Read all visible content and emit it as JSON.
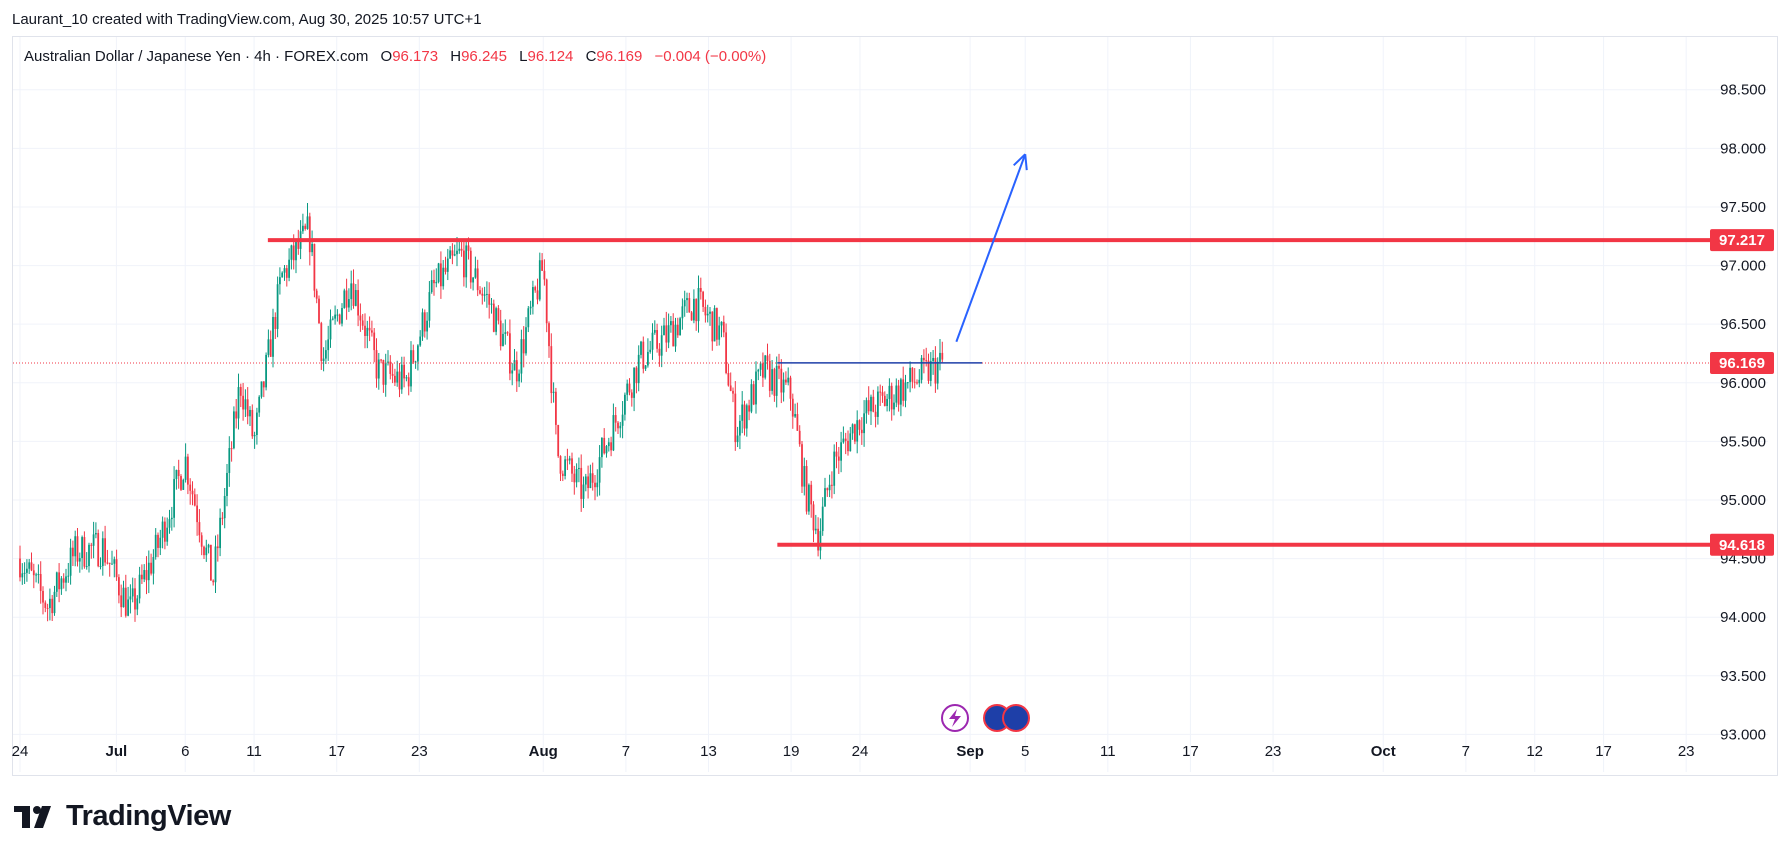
{
  "header": {
    "credit": "Laurant_10 created with TradingView.com, Aug 30, 2025 10:57 UTC+1"
  },
  "legend": {
    "symbol": "Australian Dollar / Japanese Yen · 4h · FOREX.com",
    "open_label": "O",
    "open": "96.173",
    "high_label": "H",
    "high": "96.245",
    "low_label": "L",
    "low": "96.124",
    "close_label": "C",
    "close": "96.169",
    "change": "−0.004 (−0.00%)"
  },
  "footer": {
    "logo_text": "TradingView"
  },
  "colors": {
    "up": "#089981",
    "down": "#f23645",
    "level": "#f23645",
    "arrow": "#2962ff",
    "neckline": "#1e3fa8",
    "grid": "#f0f3fa"
  },
  "chart_data": {
    "type": "candlestick",
    "interval": "4h",
    "ylim": [
      92.85,
      98.95
    ],
    "y_ticks": [
      "93.000",
      "93.500",
      "94.000",
      "94.500",
      "95.000",
      "95.500",
      "96.000",
      "96.500",
      "97.000",
      "97.500",
      "98.000",
      "98.500"
    ],
    "x_ticks": [
      {
        "label": "24",
        "bold": false
      },
      {
        "label": "Jul",
        "bold": true
      },
      {
        "label": "6",
        "bold": false
      },
      {
        "label": "11",
        "bold": false
      },
      {
        "label": "17",
        "bold": false
      },
      {
        "label": "23",
        "bold": false
      },
      {
        "label": "Aug",
        "bold": true
      },
      {
        "label": "7",
        "bold": false
      },
      {
        "label": "13",
        "bold": false
      },
      {
        "label": "19",
        "bold": false
      },
      {
        "label": "24",
        "bold": false
      },
      {
        "label": "Sep",
        "bold": true
      },
      {
        "label": "5",
        "bold": false
      },
      {
        "label": "11",
        "bold": false
      },
      {
        "label": "17",
        "bold": false
      },
      {
        "label": "23",
        "bold": false
      },
      {
        "label": "Oct",
        "bold": true
      },
      {
        "label": "7",
        "bold": false
      },
      {
        "label": "12",
        "bold": false
      },
      {
        "label": "17",
        "bold": false
      },
      {
        "label": "23",
        "bold": false
      }
    ],
    "price_path": [
      [
        "2025-06-24",
        94.5
      ],
      [
        "2025-06-26",
        94.1
      ],
      [
        "2025-06-28",
        94.55
      ],
      [
        "2025-06-30",
        94.6
      ],
      [
        "2025-07-02",
        94.05
      ],
      [
        "2025-07-04",
        94.6
      ],
      [
        "2025-07-06",
        95.35
      ],
      [
        "2025-07-08",
        94.3
      ],
      [
        "2025-07-10",
        96.0
      ],
      [
        "2025-07-11",
        95.5
      ],
      [
        "2025-07-13",
        96.9
      ],
      [
        "2025-07-15",
        97.3
      ],
      [
        "2025-07-16",
        96.2
      ],
      [
        "2025-07-18",
        96.9
      ],
      [
        "2025-07-20",
        96.1
      ],
      [
        "2025-07-22",
        96.0
      ],
      [
        "2025-07-24",
        96.8
      ],
      [
        "2025-07-26",
        97.1
      ],
      [
        "2025-07-28",
        96.7
      ],
      [
        "2025-07-30",
        96.1
      ],
      [
        "2025-08-01",
        97.0
      ],
      [
        "2025-08-02",
        95.4
      ],
      [
        "2025-08-04",
        95.05
      ],
      [
        "2025-08-06",
        95.6
      ],
      [
        "2025-08-08",
        96.2
      ],
      [
        "2025-08-10",
        96.4
      ],
      [
        "2025-08-12",
        96.7
      ],
      [
        "2025-08-14",
        96.4
      ],
      [
        "2025-08-15",
        95.6
      ],
      [
        "2025-08-17",
        96.1
      ],
      [
        "2025-08-19",
        95.9
      ],
      [
        "2025-08-20",
        95.1
      ],
      [
        "2025-08-21",
        94.7
      ],
      [
        "2025-08-22",
        95.3
      ],
      [
        "2025-08-24",
        95.7
      ],
      [
        "2025-08-27",
        95.95
      ],
      [
        "2025-08-30",
        96.17
      ]
    ],
    "levels": [
      {
        "label": "97.217",
        "price": 97.217,
        "from": "2025-07-12"
      },
      {
        "label": "94.618",
        "price": 94.618,
        "from": "2025-08-18"
      }
    ],
    "last_price": {
      "label": "96.169",
      "price": 96.169
    },
    "neckline": {
      "price": 96.17,
      "from": "2025-08-18",
      "to": "2025-09-01"
    },
    "projection_arrow": {
      "from": [
        "2025-08-31",
        96.35
      ],
      "to": [
        "2025-09-05",
        97.95
      ]
    }
  }
}
